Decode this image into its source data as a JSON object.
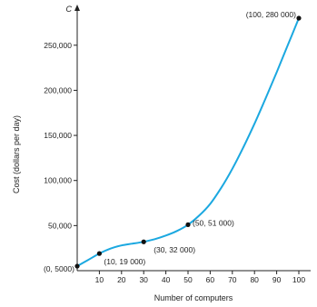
{
  "chart_data": {
    "type": "line",
    "title": "",
    "xlabel": "Number of computers",
    "ylabel": "Cost (dollars per day)",
    "y_axis_letter": "C",
    "xlim": [
      0,
      100
    ],
    "ylim": [
      0,
      280000
    ],
    "x_ticks": [
      10,
      20,
      30,
      40,
      50,
      60,
      70,
      80,
      90,
      100
    ],
    "x_tick_labels": [
      "10",
      "20",
      "30",
      "40",
      "50",
      "60",
      "70",
      "80",
      "90",
      "100"
    ],
    "y_ticks": [
      50000,
      100000,
      150000,
      200000,
      250000
    ],
    "y_tick_labels": [
      "50,000",
      "100,000",
      "150,000",
      "200,000",
      "250,000"
    ],
    "grid": false,
    "curve_color": "#1ba8e0",
    "series": [
      {
        "x": [
          0,
          5,
          10,
          15,
          20,
          25,
          30,
          35,
          40,
          45,
          50,
          55,
          60,
          65,
          70,
          75,
          80,
          85,
          90,
          95,
          100
        ],
        "y": [
          5000,
          12000,
          19000,
          24500,
          28000,
          30000,
          32000,
          35000,
          39000,
          44000,
          51000,
          61000,
          74000,
          92000,
          113000,
          137000,
          163000,
          191000,
          220000,
          250000,
          280000
        ]
      }
    ],
    "points": [
      {
        "x": 0,
        "y": 5000,
        "label": "(0, 5000)"
      },
      {
        "x": 10,
        "y": 19000,
        "label": "(10, 19 000)"
      },
      {
        "x": 30,
        "y": 32000,
        "label": "(30, 32 000)"
      },
      {
        "x": 50,
        "y": 51000,
        "label": "(50, 51 000)"
      },
      {
        "x": 100,
        "y": 280000,
        "label": "(100, 280 000)"
      }
    ]
  }
}
